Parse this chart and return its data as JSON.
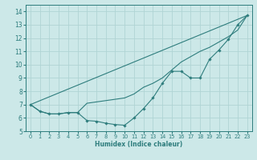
{
  "title": "",
  "xlabel": "Humidex (Indice chaleur)",
  "ylabel": "",
  "bg_color": "#cce8e8",
  "grid_color": "#b0d4d4",
  "line_color": "#2e7d7d",
  "xlim": [
    -0.5,
    23.5
  ],
  "ylim": [
    5,
    14.5
  ],
  "xticks": [
    0,
    1,
    2,
    3,
    4,
    5,
    6,
    7,
    8,
    9,
    10,
    11,
    12,
    13,
    14,
    15,
    16,
    17,
    18,
    19,
    20,
    21,
    22,
    23
  ],
  "yticks": [
    5,
    6,
    7,
    8,
    9,
    10,
    11,
    12,
    13,
    14
  ],
  "line1_x": [
    0,
    1,
    2,
    3,
    4,
    5,
    6,
    7,
    8,
    9,
    10,
    11,
    12,
    13,
    14,
    15,
    16,
    17,
    18,
    19,
    20,
    21,
    22,
    23
  ],
  "line1_y": [
    7.0,
    6.5,
    6.3,
    6.3,
    6.4,
    6.4,
    5.8,
    5.75,
    5.6,
    5.5,
    5.45,
    6.0,
    6.7,
    7.5,
    8.6,
    9.5,
    9.5,
    9.0,
    9.0,
    10.4,
    11.1,
    11.9,
    13.0,
    13.7
  ],
  "line2_x": [
    0,
    1,
    2,
    3,
    4,
    5,
    6,
    7,
    8,
    9,
    10,
    11,
    12,
    13,
    14,
    15,
    16,
    17,
    18,
    19,
    20,
    21,
    22,
    23
  ],
  "line2_y": [
    7.0,
    6.5,
    6.3,
    6.3,
    6.4,
    6.4,
    7.1,
    7.2,
    7.3,
    7.4,
    7.5,
    7.8,
    8.3,
    8.6,
    9.0,
    9.6,
    10.2,
    10.6,
    11.0,
    11.3,
    11.7,
    12.1,
    12.6,
    13.7
  ],
  "line3_x": [
    0,
    23
  ],
  "line3_y": [
    7.0,
    13.7
  ],
  "xlabel_fontsize": 5.5,
  "xlabel_bold": true,
  "tick_fontsize": 4.8,
  "ytick_fontsize": 5.5
}
